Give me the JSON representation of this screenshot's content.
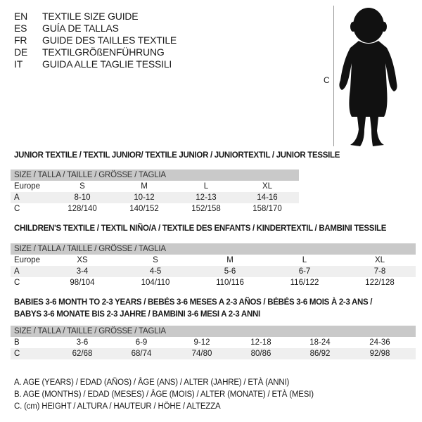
{
  "languages": [
    {
      "code": "EN",
      "text": "TEXTILE SIZE GUIDE"
    },
    {
      "code": "ES",
      "text": "GUÍA DE TALLAS"
    },
    {
      "code": "FR",
      "text": "GUIDE DES TAILLES TEXTILE"
    },
    {
      "code": "DE",
      "text": "TEXTILGRÖßENFÜHRUNG"
    },
    {
      "code": "IT",
      "text": "GUIDA ALLE TAGLIE TESSILI"
    }
  ],
  "figure": {
    "measure_label": "C",
    "icon": "child-silhouette"
  },
  "tables": [
    {
      "title": [
        "JUNIOR TEXTILE / TEXTIL JUNIOR/ TEXTILE JUNIOR / JUNIORTEXTIL / JUNIOR TESSILE"
      ],
      "header": "SIZE / TALLA / TAILLE / GRÖSSE / TAGLIA",
      "rows": [
        {
          "label": "Europe",
          "values": [
            "S",
            "M",
            "L",
            "XL"
          ]
        },
        {
          "label": "A",
          "values": [
            "8-10",
            "10-12",
            "12-13",
            "14-16"
          ]
        },
        {
          "label": "C",
          "values": [
            "128/140",
            "140/152",
            "152/158",
            "158/170"
          ]
        }
      ]
    },
    {
      "title": [
        "CHILDREN'S TEXTILE / TEXTIL NIÑO/A / TEXTILE DES ENFANTS / KINDERTEXTIL / BAMBINI TESSILE"
      ],
      "header": "SIZE / TALLA / TAILLE / GRÖSSE / TAGLIA",
      "rows": [
        {
          "label": "Europe",
          "values": [
            "XS",
            "S",
            "M",
            "L",
            "XL"
          ]
        },
        {
          "label": "A",
          "values": [
            "3-4",
            "4-5",
            "5-6",
            "6-7",
            "7-8"
          ]
        },
        {
          "label": "C",
          "values": [
            "98/104",
            "104/110",
            "110/116",
            "116/122",
            "122/128"
          ]
        }
      ]
    },
    {
      "title": [
        "BABIES 3-6 MONTH TO 2-3 YEARS / BEBÉS 3-6 MESES A 2-3 AÑOS / BÉBÉS 3-6 MOIS À 2-3 ANS /",
        "BABYS 3-6 MONATE BIS 2-3 JAHRE / BAMBINI 3-6 MESI A 2-3 ANNI"
      ],
      "header": "SIZE / TALLA / TAILLE / GRÖSSE / TAGLIA",
      "rows": [
        {
          "label": "B",
          "values": [
            "3-6",
            "6-9",
            "9-12",
            "12-18",
            "18-24",
            "24-36"
          ]
        },
        {
          "label": "C",
          "values": [
            "62/68",
            "68/74",
            "74/80",
            "80/86",
            "86/92",
            "92/98"
          ]
        }
      ]
    }
  ],
  "legend": [
    "A. AGE (YEARS) / EDAD (AÑOS) / ÂGE (ANS) / ALTER (JAHRE) / ETÀ (ANNI)",
    "B. AGE (MONTHS) / EDAD (MESES) / ÂGE (MOIS) / ALTER (MONATE) / ETÀ (MESI)",
    "C. (cm) HEIGHT / ALTURA / HAUTEUR / HÖHE / ALTEZZA"
  ]
}
